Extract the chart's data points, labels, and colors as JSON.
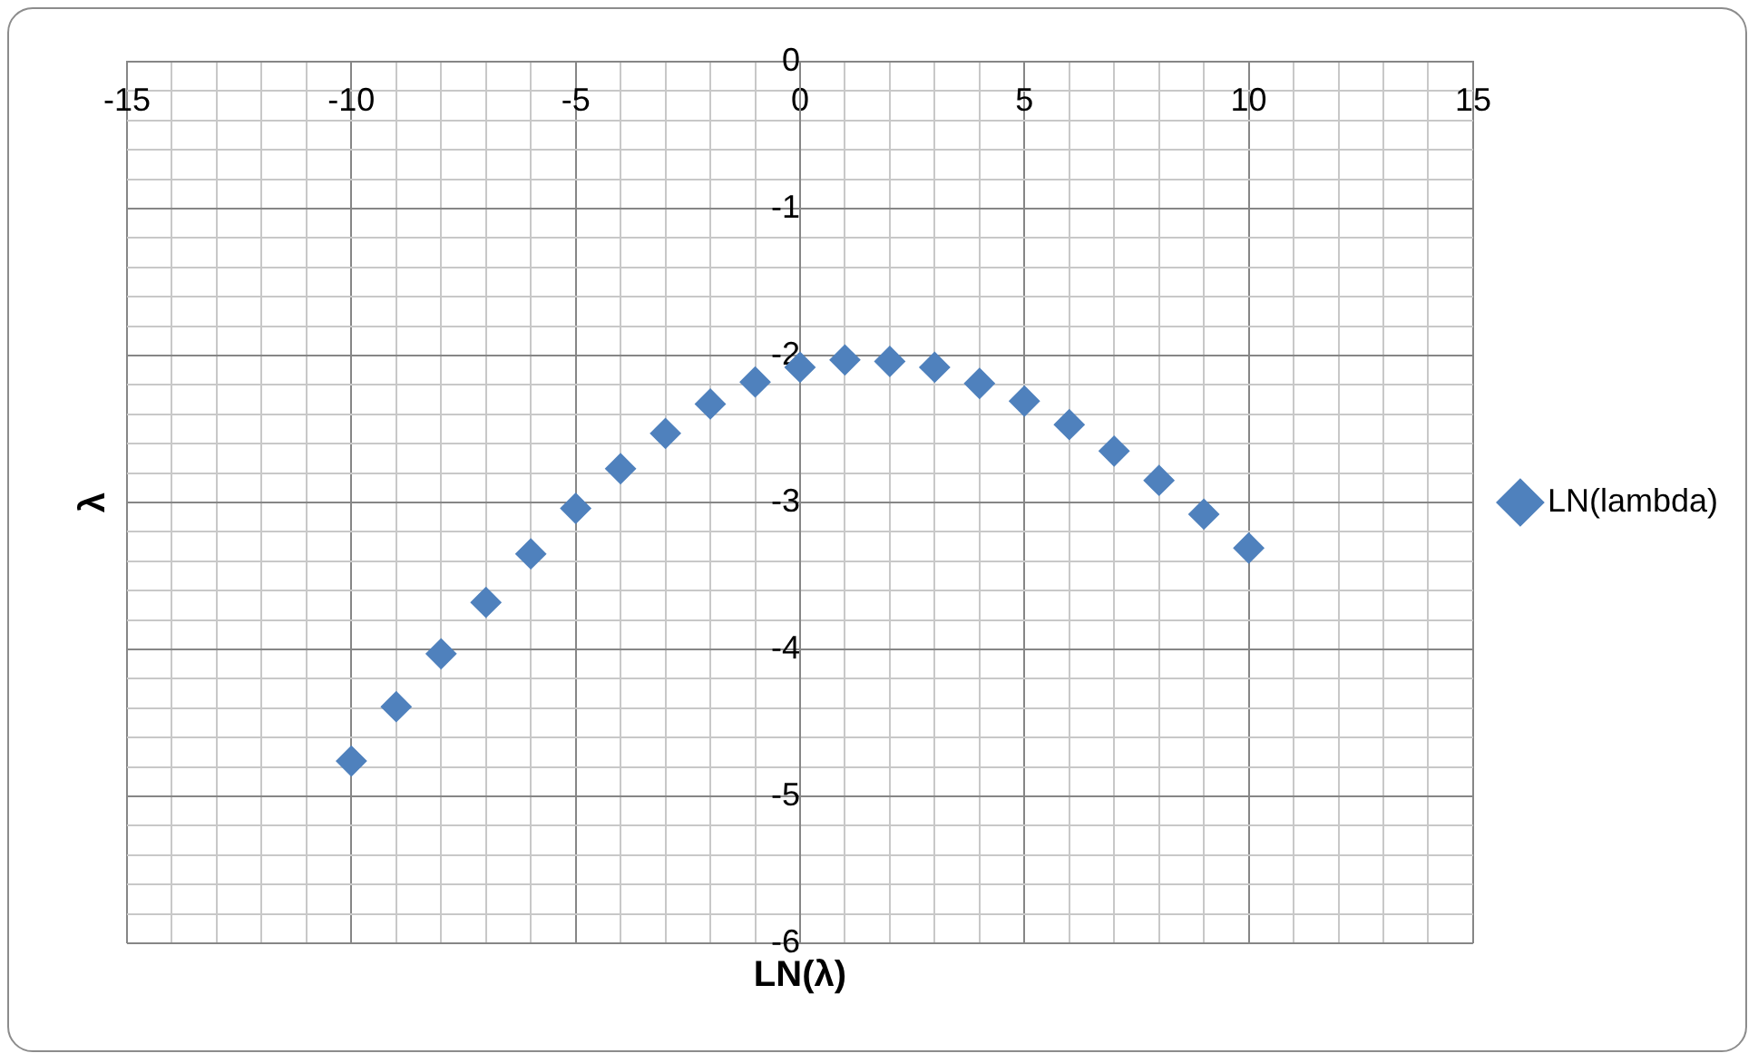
{
  "chart_data": {
    "type": "scatter",
    "xlabel": "LN(λ)",
    "ylabel": "λ",
    "x": [
      -10,
      -9,
      -8,
      -7,
      -6,
      -5,
      -4,
      -3,
      -2,
      -1,
      0,
      1,
      2,
      3,
      4,
      5,
      6,
      7,
      8,
      9,
      10
    ],
    "series": [
      {
        "name": "LN(lambda)",
        "color": "#4f81bd",
        "values": [
          -4.76,
          -4.39,
          -4.03,
          -3.68,
          -3.35,
          -3.04,
          -2.77,
          -2.53,
          -2.33,
          -2.18,
          -2.08,
          -2.03,
          -2.04,
          -2.08,
          -2.19,
          -2.31,
          -2.47,
          -2.65,
          -2.85,
          -3.08,
          -3.31
        ]
      }
    ],
    "xlim": [
      -15,
      15
    ],
    "xticks": [
      -15,
      {
        "value": -14,
        "label": null
      },
      {
        "value": -13,
        "label": null
      },
      {
        "value": -12,
        "label": null
      },
      {
        "value": -11,
        "label": null
      },
      -10,
      {
        "value": -9,
        "label": null
      },
      {
        "value": -8,
        "label": null
      },
      {
        "value": -7,
        "label": null
      },
      {
        "value": -6,
        "label": null
      },
      -5,
      {
        "value": -4,
        "label": null
      },
      {
        "value": -3,
        "label": null
      },
      {
        "value": -2,
        "label": null
      },
      {
        "value": -1,
        "label": null
      },
      0,
      {
        "value": 1,
        "label": null
      },
      {
        "value": 2,
        "label": null
      },
      {
        "value": 3,
        "label": null
      },
      {
        "value": 4,
        "label": null
      },
      5,
      {
        "value": 6,
        "label": null
      },
      {
        "value": 7,
        "label": null
      },
      {
        "value": 8,
        "label": null
      },
      {
        "value": 9,
        "label": null
      },
      10,
      {
        "value": 11,
        "label": null
      },
      {
        "value": 12,
        "label": null
      },
      {
        "value": 13,
        "label": null
      },
      {
        "value": 14,
        "label": null
      },
      15
    ],
    "ylim": [
      -6,
      0
    ],
    "yticks": [
      -6,
      {
        "value": -5.8,
        "label": null
      },
      {
        "value": -5.6,
        "label": null
      },
      {
        "value": -5.4,
        "label": null
      },
      {
        "value": -5.2,
        "label": null
      },
      -5,
      {
        "value": -4.8,
        "label": null
      },
      {
        "value": -4.6,
        "label": null
      },
      {
        "value": -4.4,
        "label": null
      },
      {
        "value": -4.2,
        "label": null
      },
      -4,
      {
        "value": -3.8,
        "label": null
      },
      {
        "value": -3.6,
        "label": null
      },
      {
        "value": -3.4,
        "label": null
      },
      {
        "value": -3.2,
        "label": null
      },
      -3,
      {
        "value": -2.8,
        "label": null
      },
      {
        "value": -2.6,
        "label": null
      },
      {
        "value": -2.4,
        "label": null
      },
      {
        "value": -2.2,
        "label": null
      },
      -2,
      {
        "value": -1.8,
        "label": null
      },
      {
        "value": -1.6,
        "label": null
      },
      {
        "value": -1.4,
        "label": null
      },
      {
        "value": -1.2,
        "label": null
      },
      -1,
      {
        "value": -0.8,
        "label": null
      },
      {
        "value": -0.6,
        "label": null
      },
      {
        "value": -0.4,
        "label": null
      },
      {
        "value": -0.2,
        "label": null
      },
      0
    ],
    "grid": true,
    "legend": "right",
    "marker": "diamond"
  }
}
